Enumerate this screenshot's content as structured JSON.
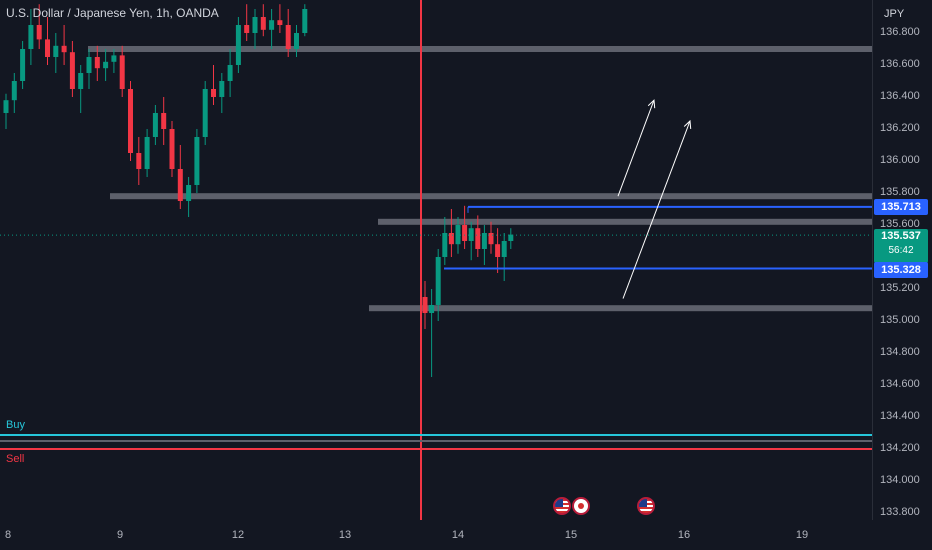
{
  "header": {
    "symbol_title": "U.S. Dollar / Japanese Yen, 1h, OANDA",
    "currency": "JPY"
  },
  "price_axis": {
    "ticks": [
      "136.800",
      "136.600",
      "136.400",
      "136.200",
      "136.000",
      "135.800",
      "135.600",
      "135.200",
      "135.000",
      "134.800",
      "134.600",
      "134.400",
      "134.200",
      "134.000",
      "133.800"
    ],
    "badges": {
      "level_upper": "135.713",
      "last_price": "135.537",
      "countdown": "56:42",
      "level_lower": "135.328"
    }
  },
  "time_axis": {
    "ticks": [
      "8",
      "9",
      "12",
      "13",
      "14",
      "15",
      "16",
      "19"
    ]
  },
  "orders": {
    "buy_label": "Buy",
    "sell_label": "Sell"
  },
  "colors": {
    "background": "#131722",
    "bull": "#089981",
    "bear": "#f23645",
    "zone": "#5d606b",
    "level_line": "#2962ff",
    "buy_line": "#26c6da",
    "sell_line": "#f23645",
    "arrow": "#ffffff"
  },
  "events": [
    "us-flag-icon",
    "jp-flag-icon",
    "us-flag-icon"
  ],
  "chart_data": {
    "type": "candlestick",
    "symbol": "USDJPY",
    "timeframe": "1h",
    "ylim": [
      133.75,
      136.98
    ],
    "levels": {
      "resistance_zones": [
        136.7,
        135.78,
        135.62,
        135.08
      ],
      "blue_levels": [
        135.713,
        135.328
      ],
      "last_price": 135.537,
      "buy": 134.3,
      "sell": 134.21
    },
    "candles": [
      [
        136.3,
        136.42,
        136.2,
        136.38
      ],
      [
        136.38,
        136.55,
        136.3,
        136.5
      ],
      [
        136.5,
        136.75,
        136.45,
        136.7
      ],
      [
        136.7,
        136.95,
        136.6,
        136.85
      ],
      [
        136.85,
        136.98,
        136.7,
        136.76
      ],
      [
        136.76,
        136.9,
        136.6,
        136.65
      ],
      [
        136.65,
        136.8,
        136.55,
        136.72
      ],
      [
        136.72,
        136.85,
        136.6,
        136.68
      ],
      [
        136.68,
        136.75,
        136.4,
        136.45
      ],
      [
        136.45,
        136.6,
        136.3,
        136.55
      ],
      [
        136.55,
        136.7,
        136.45,
        136.65
      ],
      [
        136.65,
        136.72,
        136.5,
        136.58
      ],
      [
        136.58,
        136.7,
        136.5,
        136.62
      ],
      [
        136.62,
        136.7,
        136.55,
        136.66
      ],
      [
        136.66,
        136.72,
        136.4,
        136.45
      ],
      [
        136.45,
        136.5,
        136.0,
        136.05
      ],
      [
        136.05,
        136.15,
        135.85,
        135.95
      ],
      [
        135.95,
        136.2,
        135.9,
        136.15
      ],
      [
        136.15,
        136.35,
        136.1,
        136.3
      ],
      [
        136.3,
        136.4,
        136.1,
        136.2
      ],
      [
        136.2,
        136.25,
        135.9,
        135.95
      ],
      [
        135.95,
        136.1,
        135.7,
        135.75
      ],
      [
        135.75,
        135.9,
        135.65,
        135.85
      ],
      [
        135.85,
        136.2,
        135.8,
        136.15
      ],
      [
        136.15,
        136.5,
        136.1,
        136.45
      ],
      [
        136.45,
        136.6,
        136.35,
        136.4
      ],
      [
        136.4,
        136.55,
        136.3,
        136.5
      ],
      [
        136.5,
        136.7,
        136.4,
        136.6
      ],
      [
        136.6,
        136.9,
        136.55,
        136.85
      ],
      [
        136.85,
        136.98,
        136.75,
        136.8
      ],
      [
        136.8,
        136.95,
        136.7,
        136.9
      ],
      [
        136.9,
        136.98,
        136.78,
        136.82
      ],
      [
        136.82,
        136.95,
        136.7,
        136.88
      ],
      [
        136.88,
        136.98,
        136.8,
        136.85
      ],
      [
        136.85,
        136.95,
        136.65,
        136.7
      ],
      [
        136.7,
        136.85,
        136.65,
        136.8
      ],
      [
        136.8,
        136.98,
        136.78,
        136.95
      ],
      [
        135.15,
        135.25,
        134.95,
        135.05
      ],
      [
        135.05,
        135.2,
        134.65,
        135.1
      ],
      [
        135.1,
        135.45,
        135.0,
        135.4
      ],
      [
        135.4,
        135.65,
        135.35,
        135.55
      ],
      [
        135.55,
        135.7,
        135.4,
        135.48
      ],
      [
        135.48,
        135.65,
        135.42,
        135.6
      ],
      [
        135.6,
        135.72,
        135.45,
        135.5
      ],
      [
        135.5,
        135.62,
        135.38,
        135.58
      ],
      [
        135.58,
        135.66,
        135.4,
        135.45
      ],
      [
        135.45,
        135.6,
        135.35,
        135.55
      ],
      [
        135.55,
        135.62,
        135.42,
        135.48
      ],
      [
        135.48,
        135.58,
        135.3,
        135.4
      ],
      [
        135.4,
        135.55,
        135.25,
        135.5
      ],
      [
        135.5,
        135.58,
        135.45,
        135.54
      ]
    ],
    "arrows": [
      {
        "from": [
          135.78,
          135.8
        ],
        "to": [
          136.35,
          136.38
        ]
      },
      {
        "from": [
          135.14,
          135.2
        ],
        "to": [
          136.2,
          136.25
        ]
      }
    ]
  }
}
